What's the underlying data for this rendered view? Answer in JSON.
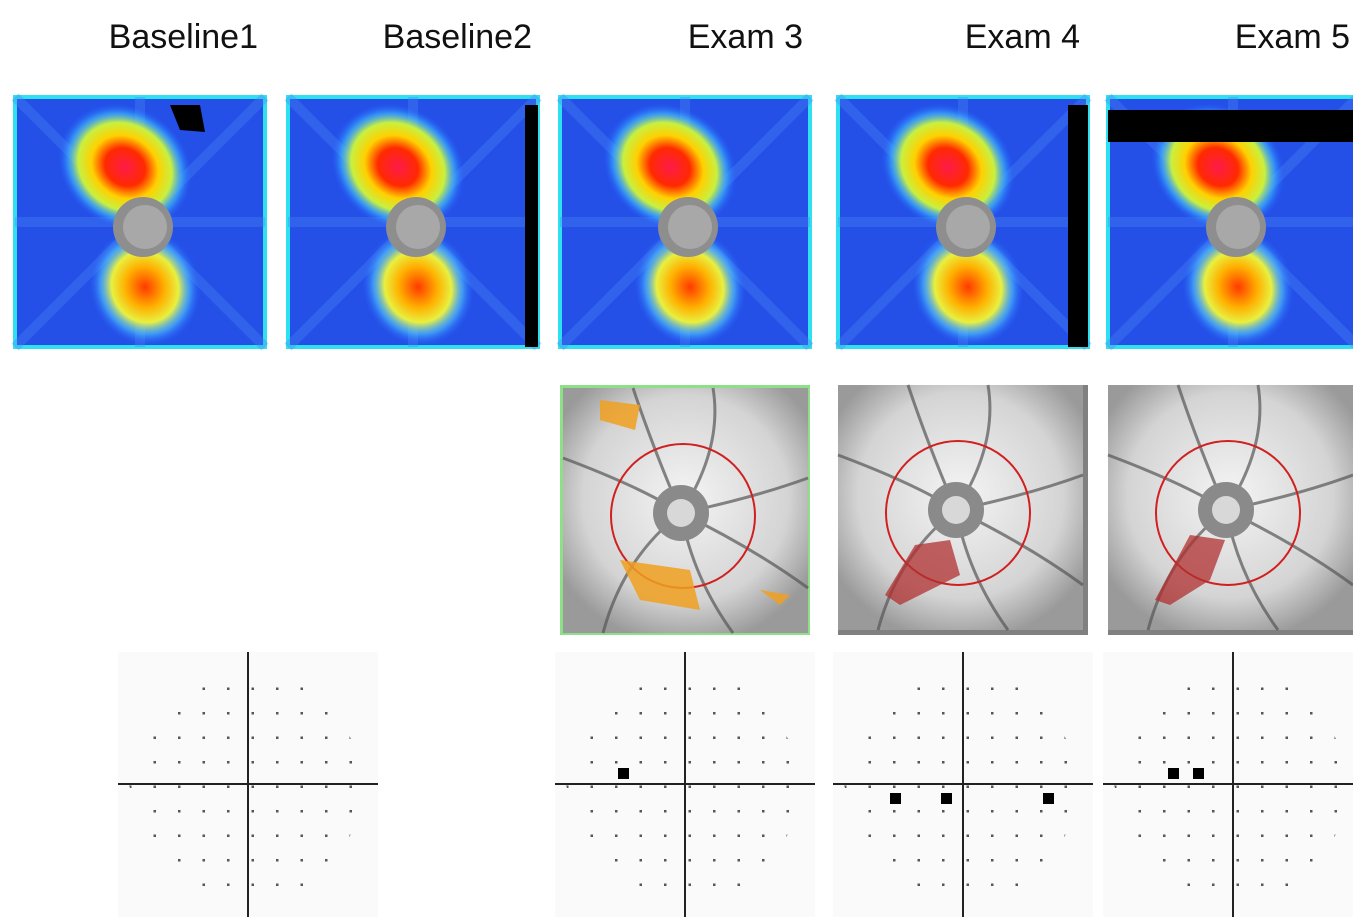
{
  "columns": [
    {
      "title": "Baseline1"
    },
    {
      "title": "Baseline2"
    },
    {
      "title": "Exam 3"
    },
    {
      "title": "Exam 4"
    },
    {
      "title": "Exam 5"
    }
  ]
}
